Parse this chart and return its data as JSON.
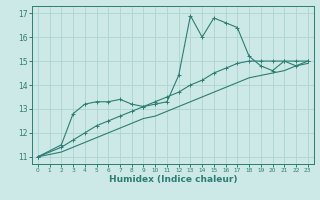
{
  "xlabel": "Humidex (Indice chaleur)",
  "ylabel": "",
  "xlim": [
    -0.5,
    23.5
  ],
  "ylim": [
    10.7,
    17.3
  ],
  "yticks": [
    11,
    12,
    13,
    14,
    15,
    16,
    17
  ],
  "xticks": [
    0,
    1,
    2,
    3,
    4,
    5,
    6,
    7,
    8,
    9,
    10,
    11,
    12,
    13,
    14,
    15,
    16,
    17,
    18,
    19,
    20,
    21,
    22,
    23
  ],
  "bg_color": "#cce9e7",
  "line_color": "#2d7d72",
  "grid_color": "#afd4d0",
  "line1_x": [
    0,
    2,
    3,
    4,
    5,
    6,
    7,
    8,
    9,
    10,
    11,
    12,
    13,
    14,
    15,
    16,
    17,
    18,
    19,
    20,
    21,
    22,
    23
  ],
  "line1_y": [
    11.0,
    11.5,
    12.8,
    13.2,
    13.3,
    13.3,
    13.4,
    13.2,
    13.1,
    13.2,
    13.3,
    14.4,
    16.9,
    16.0,
    16.8,
    16.6,
    16.4,
    15.2,
    14.8,
    14.6,
    15.0,
    14.8,
    15.0
  ],
  "line2_x": [
    0,
    2,
    3,
    4,
    5,
    6,
    7,
    8,
    9,
    10,
    11,
    12,
    13,
    14,
    15,
    16,
    17,
    18,
    19,
    20,
    21,
    22,
    23
  ],
  "line2_y": [
    11.0,
    11.4,
    11.7,
    12.0,
    12.3,
    12.5,
    12.7,
    12.9,
    13.1,
    13.3,
    13.5,
    13.7,
    14.0,
    14.2,
    14.5,
    14.7,
    14.9,
    15.0,
    15.0,
    15.0,
    15.0,
    15.0,
    15.0
  ],
  "line3_x": [
    0,
    2,
    3,
    4,
    5,
    6,
    7,
    8,
    9,
    10,
    11,
    12,
    13,
    14,
    15,
    16,
    17,
    18,
    19,
    20,
    21,
    22,
    23
  ],
  "line3_y": [
    11.0,
    11.2,
    11.4,
    11.6,
    11.8,
    12.0,
    12.2,
    12.4,
    12.6,
    12.7,
    12.9,
    13.1,
    13.3,
    13.5,
    13.7,
    13.9,
    14.1,
    14.3,
    14.4,
    14.5,
    14.6,
    14.8,
    14.9
  ]
}
